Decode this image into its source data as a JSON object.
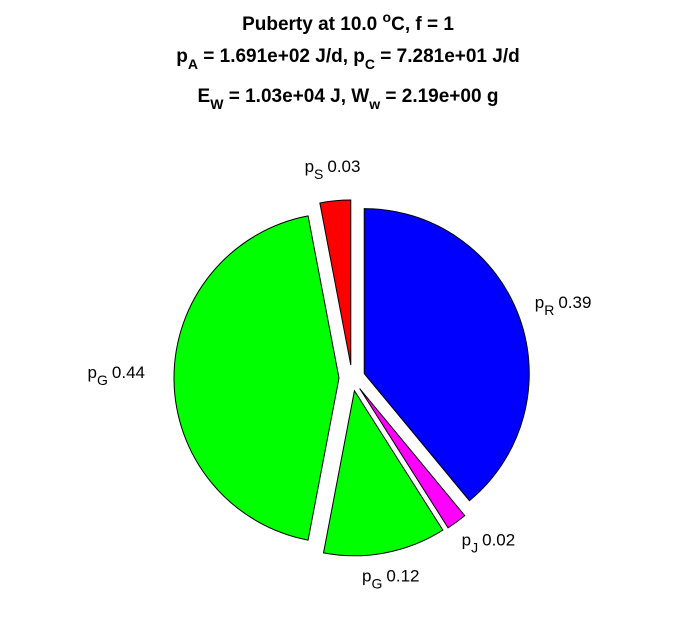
{
  "chart_data": {
    "type": "pie",
    "title_lines": [
      [
        "Puberty at 10.0 ",
        "o",
        "C, f = 1"
      ],
      [
        "p",
        "A",
        " = 1.691e+02 J/d,  p",
        "C",
        " = 7.281e+01 J/d"
      ],
      [
        "E",
        "W",
        " = 1.03e+04 J, W",
        "w",
        " = 2.19e+00 g"
      ]
    ],
    "label_prefix": "p",
    "categories": [
      "R",
      "J",
      "G",
      "G",
      "S"
    ],
    "values": [
      0.39,
      0.02,
      0.12,
      0.44,
      0.03
    ],
    "colors": [
      "#0000ff",
      "#ff00ff",
      "#00ff00",
      "#00ff00",
      "#ff0000"
    ]
  }
}
